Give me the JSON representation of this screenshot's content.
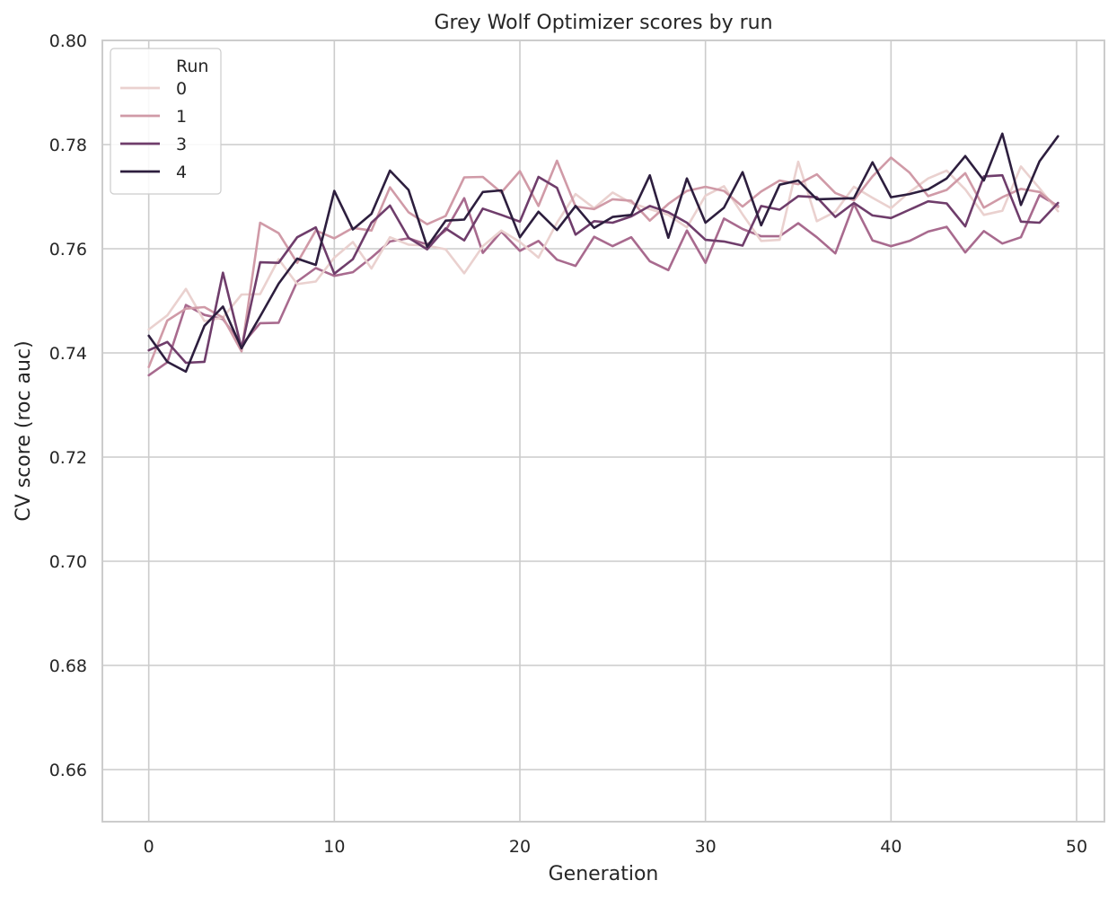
{
  "chart_data": {
    "type": "line",
    "title": "Grey Wolf Optimizer scores by run",
    "xlabel": "Generation",
    "ylabel": "CV score (roc auc)",
    "xlim": [
      -2.5,
      51.5
    ],
    "ylim": [
      0.65,
      0.8
    ],
    "xticks": [
      0,
      10,
      20,
      30,
      40,
      50
    ],
    "xtick_labels": [
      "0",
      "10",
      "20",
      "30",
      "40",
      "50"
    ],
    "yticks": [
      0.66,
      0.68,
      0.7,
      0.72,
      0.74,
      0.76,
      0.78,
      0.8
    ],
    "ytick_labels": [
      "0.66",
      "0.68",
      "0.70",
      "0.72",
      "0.74",
      "0.76",
      "0.78",
      "0.80"
    ],
    "grid": true,
    "legend": {
      "title": "Run",
      "placement": "top-left"
    },
    "x": [
      0,
      1,
      2,
      3,
      4,
      5,
      6,
      7,
      8,
      9,
      10,
      11,
      12,
      13,
      14,
      15,
      16,
      17,
      18,
      19,
      20,
      21,
      22,
      23,
      24,
      25,
      26,
      27,
      28,
      29,
      30,
      31,
      32,
      33,
      34,
      35,
      36,
      37,
      38,
      39,
      40,
      41,
      42,
      43,
      44,
      45,
      46,
      47,
      48,
      49
    ],
    "series": [
      {
        "name": "0",
        "color": "#ead1cf",
        "values": [
          0.7445,
          0.7472,
          0.7523,
          0.7461,
          0.7468,
          0.7512,
          0.7513,
          0.758,
          0.7532,
          0.7537,
          0.7583,
          0.7613,
          0.7562,
          0.7622,
          0.7608,
          0.7606,
          0.7599,
          0.7553,
          0.7605,
          0.7635,
          0.7613,
          0.7583,
          0.765,
          0.7705,
          0.7678,
          0.7708,
          0.7688,
          0.7676,
          0.7665,
          0.7641,
          0.7702,
          0.772,
          0.7666,
          0.7615,
          0.7617,
          0.7767,
          0.7653,
          0.7671,
          0.7719,
          0.7698,
          0.7678,
          0.7709,
          0.7735,
          0.775,
          0.7714,
          0.7665,
          0.7673,
          0.7758,
          0.7716,
          0.7672
        ]
      },
      {
        "name": "1",
        "color": "#d09aa7",
        "values": [
          0.7373,
          0.7462,
          0.7485,
          0.7488,
          0.7468,
          0.7403,
          0.765,
          0.763,
          0.7573,
          0.7635,
          0.762,
          0.764,
          0.7635,
          0.7718,
          0.767,
          0.7647,
          0.7663,
          0.7737,
          0.7738,
          0.7708,
          0.7749,
          0.7682,
          0.7769,
          0.7681,
          0.7676,
          0.7695,
          0.7692,
          0.7654,
          0.7686,
          0.7711,
          0.7719,
          0.7711,
          0.7681,
          0.771,
          0.7731,
          0.7724,
          0.7743,
          0.7707,
          0.7693,
          0.7739,
          0.7775,
          0.7746,
          0.7701,
          0.7713,
          0.7745,
          0.7679,
          0.7699,
          0.7715,
          0.7709,
          0.768
        ]
      },
      {
        "name": "3",
        "color": "#6f3d6b",
        "values": [
          0.7405,
          0.7421,
          0.7381,
          0.7383,
          0.7554,
          0.7409,
          0.7574,
          0.7573,
          0.7622,
          0.7641,
          0.7552,
          0.758,
          0.765,
          0.7683,
          0.7621,
          0.7599,
          0.7639,
          0.7616,
          0.7677,
          0.7665,
          0.7652,
          0.7738,
          0.7717,
          0.7627,
          0.7653,
          0.765,
          0.7662,
          0.7682,
          0.767,
          0.765,
          0.7617,
          0.7614,
          0.7606,
          0.7682,
          0.7675,
          0.7701,
          0.7699,
          0.7661,
          0.7688,
          0.7664,
          0.7659,
          0.7675,
          0.7691,
          0.7687,
          0.7643,
          0.7739,
          0.7741,
          0.7652,
          0.765,
          0.7688
        ]
      },
      {
        "name": "4",
        "color": "#2d1e3e",
        "values": [
          0.7433,
          0.7383,
          0.7364,
          0.7452,
          0.7489,
          0.7409,
          0.747,
          0.7533,
          0.7581,
          0.7569,
          0.7711,
          0.7637,
          0.7667,
          0.775,
          0.7713,
          0.7604,
          0.7654,
          0.7656,
          0.7709,
          0.7712,
          0.7622,
          0.7671,
          0.7636,
          0.7682,
          0.764,
          0.7661,
          0.7665,
          0.7741,
          0.7621,
          0.7735,
          0.765,
          0.7679,
          0.7747,
          0.7645,
          0.7723,
          0.7731,
          0.7695,
          0.7696,
          0.7697,
          0.7766,
          0.7699,
          0.7705,
          0.7714,
          0.7735,
          0.7778,
          0.7731,
          0.7821,
          0.7684,
          0.7768,
          0.7816
        ]
      }
    ],
    "series_extra": {
      "name": "",
      "color": "#a86a8e",
      "values": [
        0.7357,
        0.7382,
        0.7492,
        0.7473,
        0.7465,
        0.7415,
        0.7457,
        0.7458,
        0.7537,
        0.7563,
        0.7548,
        0.7555,
        0.7583,
        0.7614,
        0.762,
        0.7608,
        0.7635,
        0.7697,
        0.7592,
        0.7633,
        0.7596,
        0.7615,
        0.7579,
        0.7567,
        0.7623,
        0.7605,
        0.7622,
        0.7576,
        0.7559,
        0.7635,
        0.7573,
        0.7658,
        0.7638,
        0.7624,
        0.7624,
        0.7649,
        0.7622,
        0.7591,
        0.7686,
        0.7616,
        0.7605,
        0.7615,
        0.7633,
        0.7642,
        0.7593,
        0.7634,
        0.761,
        0.7622,
        0.7703,
        0.7682
      ]
    }
  }
}
